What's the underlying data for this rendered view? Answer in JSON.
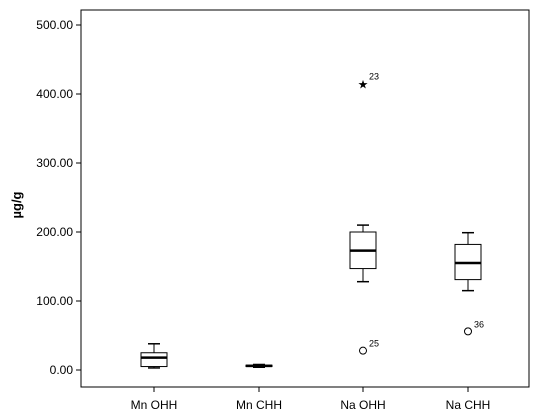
{
  "chart_data": {
    "type": "boxplot",
    "ylabel": "µg/g",
    "xlabel": "",
    "title": "",
    "ylim": [
      -20,
      520
    ],
    "yticks": [
      0,
      100,
      200,
      300,
      400,
      500
    ],
    "ytick_labels": [
      "0.00",
      "100.00",
      "200.00",
      "300.00",
      "400.00",
      "500.00"
    ],
    "grid": false,
    "categories": [
      "Mn OHH",
      "Mn CHH",
      "Na OHH",
      "Na CHH"
    ],
    "boxes": [
      {
        "category": "Mn OHH",
        "min": 3,
        "q1": 5,
        "median": 18,
        "q3": 25,
        "max": 38,
        "outliers": []
      },
      {
        "category": "Mn CHH",
        "min": 4,
        "q1": 5,
        "median": 6,
        "q3": 7,
        "max": 8,
        "outliers": []
      },
      {
        "category": "Na OHH",
        "min": 128,
        "q1": 147,
        "median": 173,
        "q3": 200,
        "max": 210,
        "outliers": [
          {
            "value": 28,
            "label": "25",
            "marker": "circle"
          },
          {
            "value": 415,
            "label": "23",
            "marker": "star"
          }
        ]
      },
      {
        "category": "Na CHH",
        "min": 115,
        "q1": 131,
        "median": 155,
        "q3": 182,
        "max": 199,
        "outliers": [
          {
            "value": 56,
            "label": "36",
            "marker": "circle"
          }
        ]
      }
    ]
  }
}
